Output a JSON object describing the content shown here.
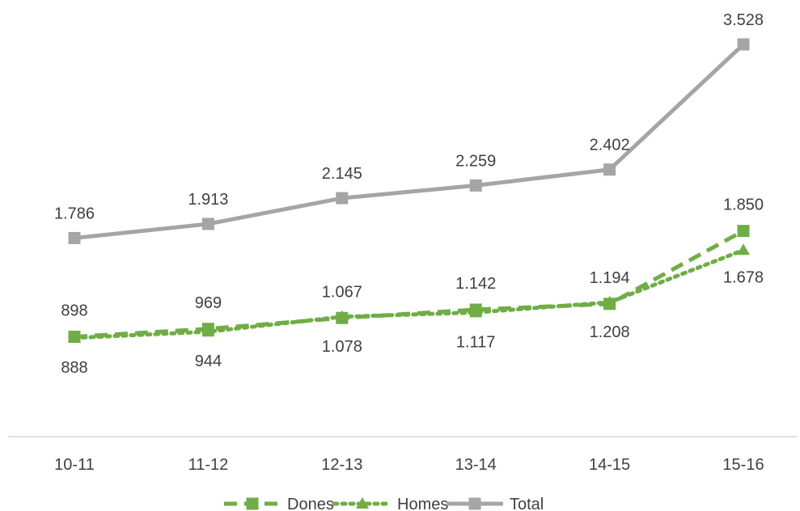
{
  "chart_data": {
    "type": "line",
    "categories": [
      "10-11",
      "11-12",
      "12-13",
      "13-14",
      "14-15",
      "15-16"
    ],
    "series": [
      {
        "name": "Dones",
        "values": [
          898,
          969,
          1067,
          1142,
          1194,
          1850
        ],
        "value_labels": [
          "898",
          "969",
          "1.067",
          "1.142",
          "1.194",
          "1.850"
        ],
        "color": "#70AD47",
        "line_style": "dashed",
        "marker": "square"
      },
      {
        "name": "Homes",
        "values": [
          888,
          944,
          1078,
          1117,
          1208,
          1678
        ],
        "value_labels": [
          "888",
          "944",
          "1.078",
          "1.117",
          "1.208",
          "1.678"
        ],
        "color": "#70AD47",
        "line_style": "dotted",
        "marker": "triangle"
      },
      {
        "name": "Total",
        "values": [
          1786,
          1913,
          2145,
          2259,
          2402,
          3528
        ],
        "value_labels": [
          "1.786",
          "1.913",
          "2.145",
          "2.259",
          "2.402",
          "3.528"
        ],
        "color": "#A5A5A5",
        "line_style": "solid",
        "marker": "square"
      }
    ],
    "title": "",
    "xlabel": "",
    "ylabel": "",
    "ylim": [
      0,
      4000
    ],
    "grid": false,
    "legend_position": "bottom"
  }
}
